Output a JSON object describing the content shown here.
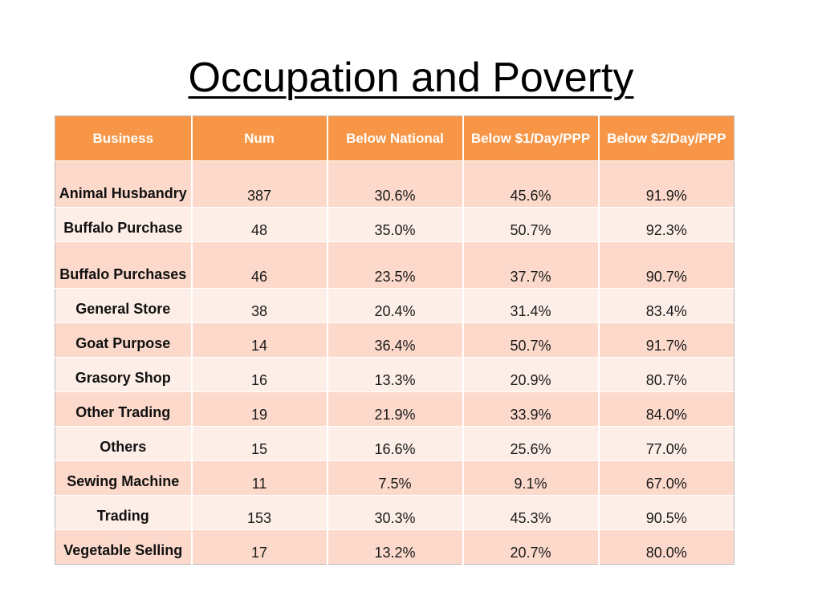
{
  "title": "Occupation and Poverty",
  "table": {
    "headers": [
      "Business",
      "Num",
      "Below National",
      "Below $1/Day/PPP",
      "Below $2/Day/PPP"
    ],
    "rows": [
      [
        "Animal Husbandry",
        "387",
        "30.6%",
        "45.6%",
        "91.9%"
      ],
      [
        "Buffalo Purchase",
        "48",
        "35.0%",
        "50.7%",
        "92.3%"
      ],
      [
        "Buffalo Purchases",
        "46",
        "23.5%",
        "37.7%",
        "90.7%"
      ],
      [
        "General Store",
        "38",
        "20.4%",
        "31.4%",
        "83.4%"
      ],
      [
        "Goat Purpose",
        "14",
        "36.4%",
        "50.7%",
        "91.7%"
      ],
      [
        "Grasory Shop",
        "16",
        "13.3%",
        "20.9%",
        "80.7%"
      ],
      [
        "Other Trading",
        "19",
        "21.9%",
        "33.9%",
        "84.0%"
      ],
      [
        "Others",
        "15",
        "16.6%",
        "25.6%",
        "77.0%"
      ],
      [
        "Sewing Machine",
        "11",
        "7.5%",
        "9.1%",
        "67.0%"
      ],
      [
        "Trading",
        "153",
        "30.3%",
        "45.3%",
        "90.5%"
      ],
      [
        "Vegetable Selling",
        "17",
        "13.2%",
        "20.7%",
        "80.0%"
      ]
    ]
  },
  "colors": {
    "header_bg": "#f79646",
    "row_odd": "#fcd9cb",
    "row_even": "#fdeee8"
  }
}
